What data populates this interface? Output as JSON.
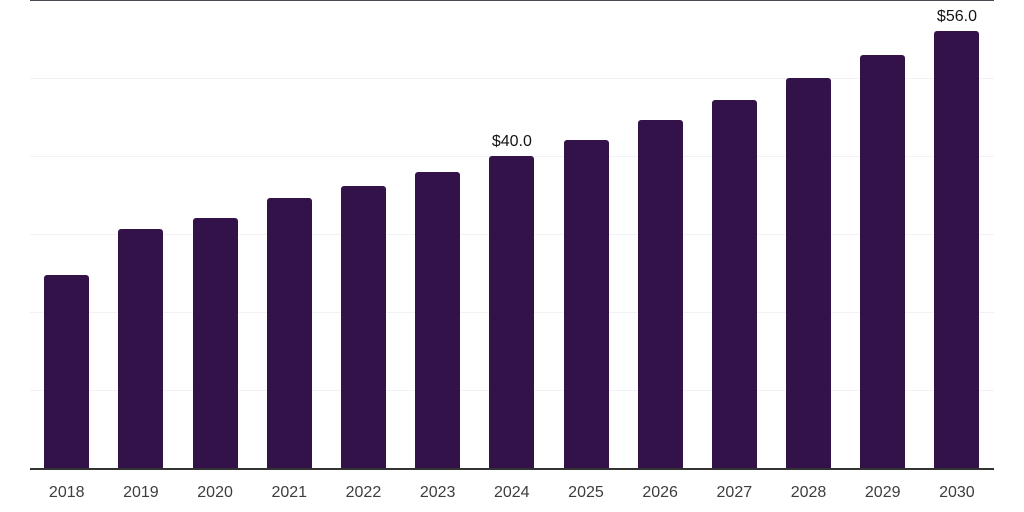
{
  "chart_data": {
    "type": "bar",
    "title": "",
    "xlabel": "",
    "ylabel": "",
    "categories": [
      "2018",
      "2019",
      "2020",
      "2021",
      "2022",
      "2023",
      "2024",
      "2025",
      "2026",
      "2027",
      "2028",
      "2029",
      "2030"
    ],
    "values": [
      24.7,
      30.7,
      32.0,
      34.6,
      36.1,
      37.9,
      40.0,
      42.1,
      44.6,
      47.2,
      50.0,
      52.9,
      56.0
    ],
    "annotations": [
      {
        "category": "2024",
        "text": "$40.0"
      },
      {
        "category": "2030",
        "text": "$56.0"
      }
    ],
    "ylim": [
      0,
      60
    ],
    "gridline_values": [
      10,
      20,
      30,
      40,
      50
    ],
    "grid": "horizontal",
    "legend": "none",
    "colors": {
      "bar": "#33124a",
      "axis_line": "#333333",
      "top_line": "#4a4a52",
      "gridline": "#f2f1f5",
      "tick_label": "#3d3d3d",
      "value_label": "#141414",
      "background": "#ffffff"
    }
  }
}
